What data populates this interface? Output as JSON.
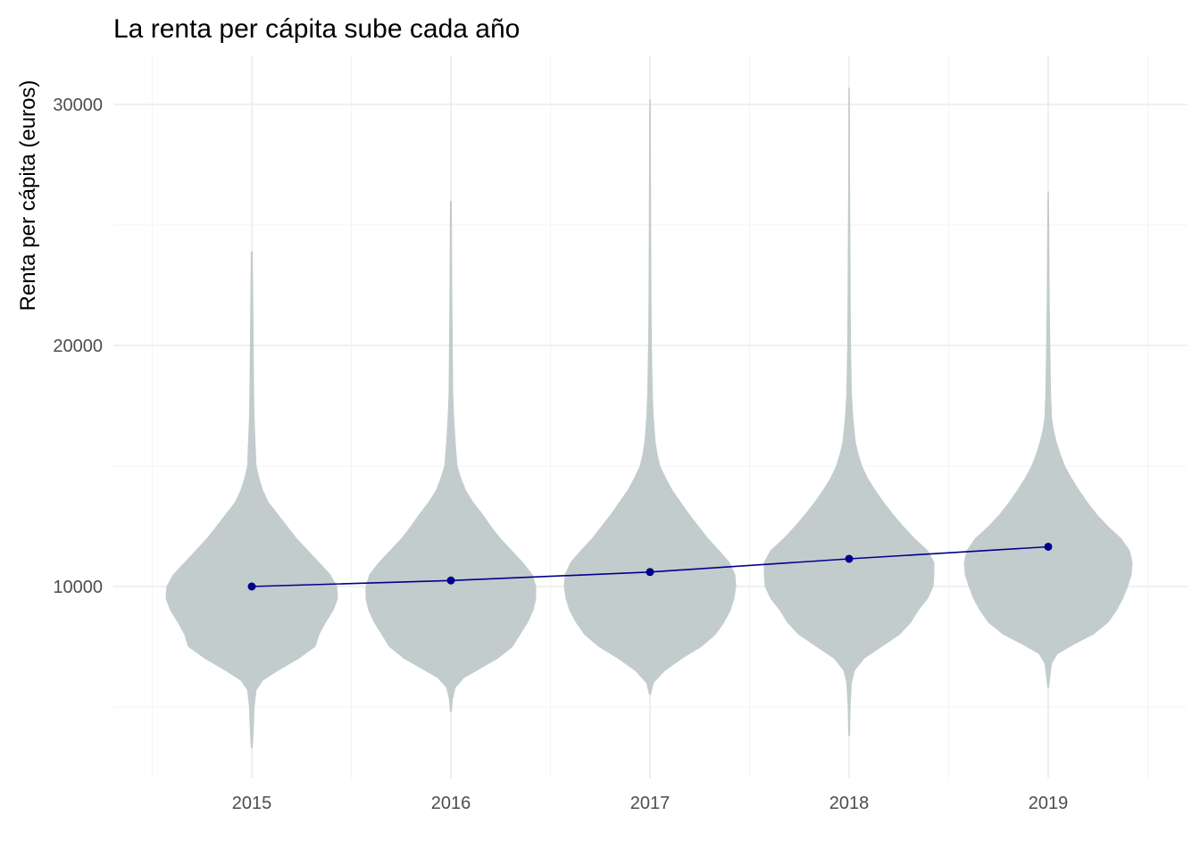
{
  "chart_data": {
    "type": "violin",
    "title": "La renta per cápita sube cada año",
    "xlabel": "",
    "ylabel": "Renta per cápita (euros)",
    "categories": [
      "2015",
      "2016",
      "2017",
      "2018",
      "2019"
    ],
    "ylim": [
      3000,
      32000
    ],
    "yticks": [
      10000,
      20000,
      30000
    ],
    "yticks_minor": [
      5000,
      15000,
      25000
    ],
    "grid": true,
    "colors": {
      "violin": "#c2cccd",
      "mean": "#00008b"
    },
    "means": [
      10000,
      10250,
      10600,
      11150,
      11650
    ],
    "violins": [
      {
        "x": "2015",
        "profile": [
          [
            3300,
            0.01
          ],
          [
            4000,
            0.02
          ],
          [
            5000,
            0.03
          ],
          [
            5700,
            0.05
          ],
          [
            6100,
            0.12
          ],
          [
            6500,
            0.28
          ],
          [
            7000,
            0.5
          ],
          [
            7500,
            0.68
          ],
          [
            8000,
            0.72
          ],
          [
            8500,
            0.79
          ],
          [
            9000,
            0.87
          ],
          [
            9500,
            0.92
          ],
          [
            10000,
            0.91
          ],
          [
            10500,
            0.84
          ],
          [
            11000,
            0.72
          ],
          [
            11500,
            0.6
          ],
          [
            12000,
            0.48
          ],
          [
            12500,
            0.38
          ],
          [
            13000,
            0.28
          ],
          [
            13500,
            0.18
          ],
          [
            14000,
            0.12
          ],
          [
            14500,
            0.08
          ],
          [
            15000,
            0.05
          ],
          [
            16000,
            0.04
          ],
          [
            17000,
            0.03
          ],
          [
            18000,
            0.025
          ],
          [
            20000,
            0.02
          ],
          [
            22000,
            0.015
          ],
          [
            23900,
            0.01
          ]
        ]
      },
      {
        "x": "2016",
        "profile": [
          [
            4800,
            0.01
          ],
          [
            5300,
            0.02
          ],
          [
            5800,
            0.05
          ],
          [
            6200,
            0.14
          ],
          [
            6600,
            0.32
          ],
          [
            7000,
            0.5
          ],
          [
            7500,
            0.66
          ],
          [
            8000,
            0.74
          ],
          [
            8500,
            0.82
          ],
          [
            9000,
            0.88
          ],
          [
            9500,
            0.91
          ],
          [
            10000,
            0.91
          ],
          [
            10500,
            0.87
          ],
          [
            11000,
            0.77
          ],
          [
            11500,
            0.65
          ],
          [
            12000,
            0.53
          ],
          [
            12500,
            0.43
          ],
          [
            13000,
            0.34
          ],
          [
            13500,
            0.24
          ],
          [
            14000,
            0.16
          ],
          [
            14500,
            0.11
          ],
          [
            15000,
            0.07
          ],
          [
            16000,
            0.05
          ],
          [
            17000,
            0.035
          ],
          [
            18000,
            0.025
          ],
          [
            20000,
            0.02
          ],
          [
            22000,
            0.015
          ],
          [
            24000,
            0.012
          ],
          [
            26000,
            0.01
          ]
        ]
      },
      {
        "x": "2017",
        "profile": [
          [
            5500,
            0.01
          ],
          [
            6000,
            0.04
          ],
          [
            6500,
            0.16
          ],
          [
            7000,
            0.34
          ],
          [
            7500,
            0.55
          ],
          [
            8000,
            0.7
          ],
          [
            8500,
            0.79
          ],
          [
            9000,
            0.86
          ],
          [
            9500,
            0.9
          ],
          [
            10000,
            0.92
          ],
          [
            10500,
            0.91
          ],
          [
            11000,
            0.85
          ],
          [
            11500,
            0.74
          ],
          [
            12000,
            0.62
          ],
          [
            12500,
            0.52
          ],
          [
            13000,
            0.42
          ],
          [
            13500,
            0.33
          ],
          [
            14000,
            0.24
          ],
          [
            14500,
            0.17
          ],
          [
            15000,
            0.11
          ],
          [
            15500,
            0.08
          ],
          [
            16000,
            0.06
          ],
          [
            17000,
            0.04
          ],
          [
            18000,
            0.03
          ],
          [
            20000,
            0.02
          ],
          [
            22000,
            0.015
          ],
          [
            25000,
            0.012
          ],
          [
            28000,
            0.01
          ],
          [
            30200,
            0.008
          ]
        ]
      },
      {
        "x": "2018",
        "profile": [
          [
            3800,
            0.01
          ],
          [
            5000,
            0.015
          ],
          [
            6000,
            0.03
          ],
          [
            6500,
            0.06
          ],
          [
            7000,
            0.16
          ],
          [
            7500,
            0.35
          ],
          [
            8000,
            0.54
          ],
          [
            8500,
            0.66
          ],
          [
            9000,
            0.74
          ],
          [
            9500,
            0.84
          ],
          [
            10000,
            0.9
          ],
          [
            10500,
            0.91
          ],
          [
            11000,
            0.91
          ],
          [
            11500,
            0.84
          ],
          [
            12000,
            0.7
          ],
          [
            12500,
            0.58
          ],
          [
            13000,
            0.47
          ],
          [
            13500,
            0.37
          ],
          [
            14000,
            0.28
          ],
          [
            14500,
            0.2
          ],
          [
            15000,
            0.14
          ],
          [
            15500,
            0.1
          ],
          [
            16000,
            0.07
          ],
          [
            17000,
            0.045
          ],
          [
            18000,
            0.03
          ],
          [
            20000,
            0.02
          ],
          [
            23000,
            0.015
          ],
          [
            27000,
            0.01
          ],
          [
            30700,
            0.008
          ]
        ]
      },
      {
        "x": "2019",
        "profile": [
          [
            5800,
            0.01
          ],
          [
            6200,
            0.02
          ],
          [
            6800,
            0.04
          ],
          [
            7200,
            0.1
          ],
          [
            7600,
            0.28
          ],
          [
            8000,
            0.48
          ],
          [
            8500,
            0.64
          ],
          [
            9000,
            0.73
          ],
          [
            9500,
            0.8
          ],
          [
            10000,
            0.85
          ],
          [
            10500,
            0.89
          ],
          [
            11000,
            0.9
          ],
          [
            11500,
            0.87
          ],
          [
            12000,
            0.78
          ],
          [
            12500,
            0.64
          ],
          [
            13000,
            0.52
          ],
          [
            13500,
            0.42
          ],
          [
            14000,
            0.33
          ],
          [
            14500,
            0.25
          ],
          [
            15000,
            0.18
          ],
          [
            15500,
            0.13
          ],
          [
            16000,
            0.09
          ],
          [
            16500,
            0.06
          ],
          [
            17000,
            0.04
          ],
          [
            18000,
            0.03
          ],
          [
            20000,
            0.022
          ],
          [
            22000,
            0.015
          ],
          [
            24000,
            0.012
          ],
          [
            26400,
            0.008
          ]
        ]
      }
    ]
  }
}
